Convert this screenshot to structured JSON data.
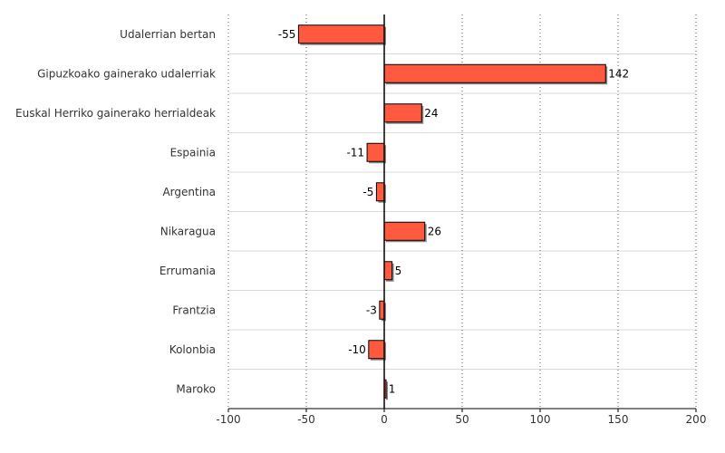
{
  "chart_data": {
    "type": "bar",
    "orientation": "horizontal",
    "title": "",
    "xlabel": "",
    "ylabel": "",
    "xlim": [
      -100,
      200
    ],
    "xticks": [
      -100,
      -50,
      0,
      50,
      100,
      150,
      200
    ],
    "grid": "vertical-dotted",
    "legend": "none",
    "bar_color": "#ff5a3f",
    "bar_edge_color": "#000000",
    "categories": [
      "Udalerrian bertan",
      "Gipuzkoako gainerako udalerriak",
      "Euskal Herriko gainerako herrialdeak",
      "Espainia",
      "Argentina",
      "Nikaragua",
      "Errumania",
      "Frantzia",
      "Kolonbia",
      "Maroko"
    ],
    "values": [
      -55,
      142,
      24,
      -11,
      -5,
      26,
      5,
      -3,
      -10,
      1
    ]
  }
}
